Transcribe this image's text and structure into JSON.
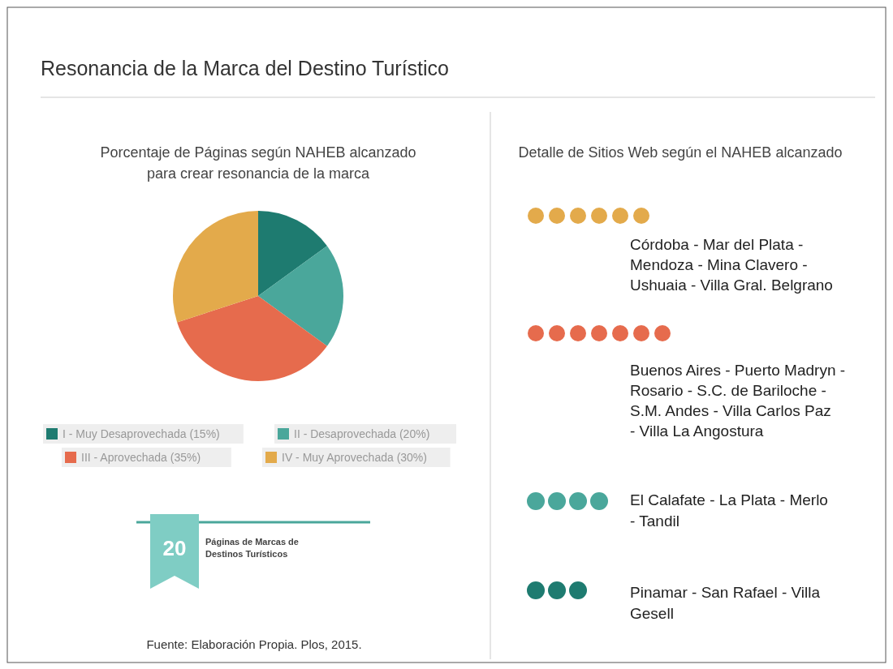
{
  "chart_data": [
    {
      "type": "pie",
      "title": "Resonancia de la Marca del Destino Turístico",
      "subtitle": "Porcentaje de Páginas según NAHEB alcanzado para crear resonancia de la marca",
      "categories": [
        "I - Muy Desaprovechada (15%)",
        "II - Desaprovechada (20%)",
        "III - Aprovechada (35%)",
        "IV - Muy Aprovechada (30%)"
      ],
      "values": [
        15,
        20,
        35,
        30
      ],
      "colors": [
        "#1e7b70",
        "#4aa79b",
        "#e66b4d",
        "#e3aa4b"
      ],
      "legend": "bottom",
      "annotations": [
        "20",
        "Páginas de Marcas de Destinos Turísticos",
        "Fuente: Elaboración Propia. Plos, 2015."
      ]
    },
    {
      "type": "other",
      "title": "Detalle de Sitios Web según el NAHEB alcanzado",
      "annotations": [
        "Córdoba - Mar del Plata - Mendoza - Mina Clavero - Ushuaia - Villa Gral. Belgrano",
        "Buenos Aires - Puerto Madryn - Rosario - S.C. de Bariloche - S.M. Andes - Villa Carlos Paz - Villa La Angostura",
        "El Calafate - La Plata - Merlo - Tandil",
        "Pinamar - San Rafael - Villa Gesell"
      ]
    }
  ]
}
